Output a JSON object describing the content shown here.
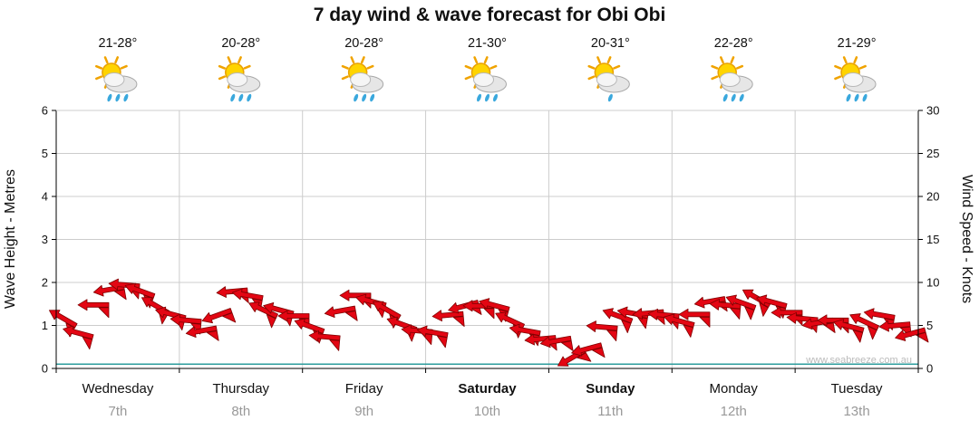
{
  "title": "7 day wind & wave forecast for Obi Obi",
  "watermark": "www.seabreeze.com.au",
  "days": [
    {
      "name": "Wednesday",
      "date": "7th",
      "temp": "21-28°",
      "icon": "sun-cloud-rain",
      "rain_drops": 3,
      "weekend": false
    },
    {
      "name": "Thursday",
      "date": "8th",
      "temp": "20-28°",
      "icon": "sun-cloud-rain",
      "rain_drops": 3,
      "weekend": false
    },
    {
      "name": "Friday",
      "date": "9th",
      "temp": "20-28°",
      "icon": "sun-cloud-rain",
      "rain_drops": 3,
      "weekend": false
    },
    {
      "name": "Saturday",
      "date": "10th",
      "temp": "21-30°",
      "icon": "sun-cloud-rain",
      "rain_drops": 3,
      "weekend": true
    },
    {
      "name": "Sunday",
      "date": "11th",
      "temp": "20-31°",
      "icon": "sun-cloud-light-rain",
      "rain_drops": 1,
      "weekend": true
    },
    {
      "name": "Monday",
      "date": "12th",
      "temp": "22-28°",
      "icon": "sun-cloud-rain",
      "rain_drops": 3,
      "weekend": false
    },
    {
      "name": "Tuesday",
      "date": "13th",
      "temp": "21-29°",
      "icon": "sun-cloud-rain",
      "rain_drops": 3,
      "weekend": false
    }
  ],
  "chart_data": {
    "type": "wind-barb",
    "title": "7 day wind & wave forecast for Obi Obi",
    "ylabel_left": "Wave Height - Metres",
    "ylabel_right": "Wind Speed - Knots",
    "ylim_left": [
      0,
      6
    ],
    "ylim_right": [
      0,
      30
    ],
    "y_step_left": 1,
    "y_step_right": 5,
    "grid": true,
    "categories": [
      "Wednesday",
      "Thursday",
      "Friday",
      "Saturday",
      "Sunday",
      "Monday",
      "Tuesday"
    ],
    "points_per_day": 8,
    "wind_knots": [
      5.5,
      4,
      7.5,
      9.5,
      9.5,
      9,
      7.5,
      6,
      5.5,
      4.5,
      6.5,
      8.75,
      8.5,
      7,
      6.5,
      6,
      5,
      4,
      6.5,
      8.5,
      8,
      6.5,
      5,
      4.5,
      4.5,
      6,
      7.25,
      7.5,
      7,
      5.5,
      4.5,
      3.75,
      3,
      1.25,
      2.5,
      4.5,
      6,
      6.5,
      6.75,
      6,
      5.5,
      6.5,
      7.5,
      7.25,
      7.75,
      8.5,
      7.5,
      6.5,
      6,
      5,
      5.5,
      5,
      5.75,
      6,
      5,
      4.25
    ],
    "wind_dir_deg": [
      210,
      195,
      180,
      170,
      185,
      200,
      210,
      195,
      185,
      170,
      160,
      175,
      190,
      205,
      195,
      180,
      200,
      185,
      170,
      180,
      195,
      210,
      200,
      185,
      190,
      175,
      165,
      180,
      195,
      205,
      190,
      175,
      170,
      150,
      165,
      185,
      200,
      190,
      175,
      185,
      195,
      180,
      170,
      185,
      200,
      210,
      195,
      180,
      185,
      170,
      180,
      195,
      205,
      190,
      175,
      165
    ],
    "wave_metres": 0.1,
    "colors": {
      "barb_fill": "#e30613",
      "barb_outline": "#7f0000",
      "wave_line": "#2d9d9d",
      "grid": "#cccccc",
      "axis": "#000000",
      "date_text": "#999999"
    }
  }
}
